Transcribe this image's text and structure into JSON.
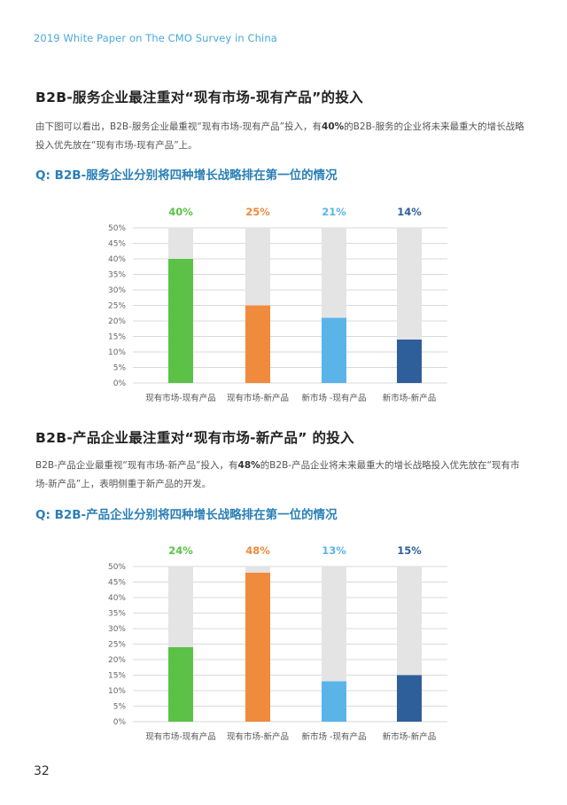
{
  "header": {
    "title": "2019 White Paper on The CMO Survey in China"
  },
  "sections": [
    {
      "heading": "B2B-服务企业最注重对“现有市场-现有产品”的投入",
      "text_parts": [
        "由下图可以看出，B2B-服务企业最重视“现有市场-现有产品”投入，有",
        "40%",
        "的B2B-服务的企业将未来最重大的增长战略投入优先放在“现有市场-现有产品”上。"
      ],
      "chart_title": "Q: B2B-服务企业分别将四种增长战略排在第一位的情况"
    },
    {
      "heading": "B2B-产品企业最注重对“现有市场-新产品” 的投入",
      "text_parts": [
        "B2B-产品企业最重视“现有市场-新产品”投入，有",
        "48%",
        "的B2B-产品企业将未来最重大的增长战略投入优先放在“现有市场-新产品”上，表明侧重于新产品的开发。"
      ],
      "chart_title": "Q: B2B-产品企业分别将四种增长战略排在第一位的情况"
    }
  ],
  "chart_data": [
    {
      "type": "bar",
      "title": "Q: B2B-服务企业分别将四种增长战略排在第一位的情况",
      "categories": [
        "现有市场-现有产品",
        "现有市场-新产品",
        "新市场 -现有产品",
        "新市场-新产品"
      ],
      "values": [
        40,
        25,
        21,
        14
      ],
      "value_labels": [
        "40%",
        "25%",
        "21%",
        "14%"
      ],
      "colors": [
        "#5bc247",
        "#f08a3c",
        "#5ab4ea",
        "#2f5f9a"
      ],
      "background_bar_color": "#e4e4e4",
      "ylim": [
        0,
        50
      ],
      "yticks": [
        "0%",
        "5%",
        "10%",
        "15%",
        "20%",
        "25%",
        "30%",
        "35%",
        "40%",
        "45%",
        "50%"
      ],
      "grid": true
    },
    {
      "type": "bar",
      "title": "Q: B2B-产品企业分别将四种增长战略排在第一位的情况",
      "categories": [
        "现有市场-现有产品",
        "现有市场-新产品",
        "新市场 -现有产品",
        "新市场-新产品"
      ],
      "values": [
        24,
        48,
        13,
        15
      ],
      "value_labels": [
        "24%",
        "48%",
        "13%",
        "15%"
      ],
      "colors": [
        "#5bc247",
        "#f08a3c",
        "#5ab4ea",
        "#2f5f9a"
      ],
      "background_bar_color": "#e4e4e4",
      "ylim": [
        0,
        50
      ],
      "yticks": [
        "0%",
        "5%",
        "10%",
        "15%",
        "20%",
        "25%",
        "30%",
        "35%",
        "40%",
        "45%",
        "50%"
      ],
      "grid": true
    }
  ],
  "footer": {
    "page_number": "32"
  }
}
